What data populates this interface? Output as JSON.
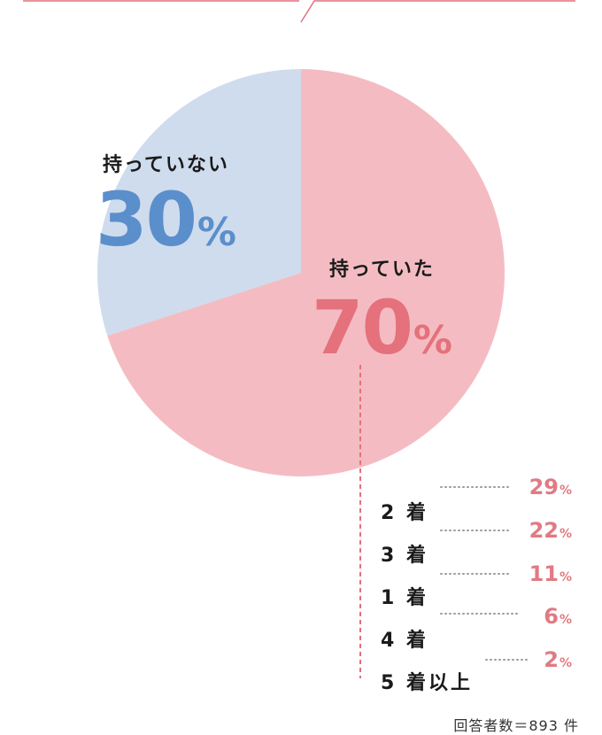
{
  "colors": {
    "have_fill": "#f4bcc2",
    "have_text": "#e4717b",
    "not_fill": "#cfdcee",
    "not_text": "#5b8fcb",
    "accent_line": "#e4717b"
  },
  "chart_data": {
    "type": "pie",
    "slices": [
      {
        "label": "持っていない",
        "value": 30,
        "display_number": "30",
        "unit": "%"
      },
      {
        "label": "持っていた",
        "value": 70,
        "display_number": "70",
        "unit": "%"
      }
    ],
    "breakdown": {
      "of": "持っていた",
      "items": [
        {
          "label": "2 着",
          "value": 29,
          "display_number": "29",
          "unit": "%"
        },
        {
          "label": "3 着",
          "value": 22,
          "display_number": "22",
          "unit": "%"
        },
        {
          "label": "1 着",
          "value": 11,
          "display_number": "11",
          "unit": "%"
        },
        {
          "label": "4 着",
          "value": 6,
          "display_number": "6",
          "unit": "%"
        },
        {
          "label": "5 着以上",
          "value": 2,
          "display_number": "2",
          "unit": "%"
        }
      ]
    },
    "footnote": "回答者数＝893 件"
  }
}
